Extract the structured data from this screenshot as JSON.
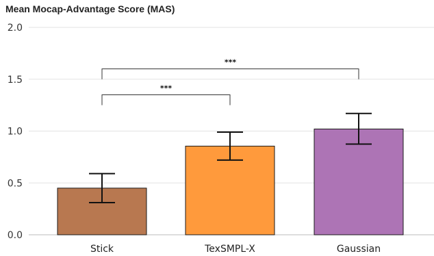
{
  "chart_data": {
    "type": "bar",
    "title": "Mean Mocap-Advantage Score (MAS)",
    "xlabel": "",
    "ylabel": "",
    "ylim": [
      0,
      2.0
    ],
    "yticks": [
      "0.0",
      "0.5",
      "1.0",
      "1.5",
      "2.0"
    ],
    "categories": [
      "Stick",
      "TexSMPL-X",
      "Gaussian"
    ],
    "values": [
      0.45,
      0.855,
      1.02
    ],
    "error_low": [
      0.31,
      0.72,
      0.875
    ],
    "error_high": [
      0.59,
      0.99,
      1.17
    ],
    "colors": [
      "#b87850",
      "#ff9a3c",
      "#ad74b5"
    ],
    "grid": true,
    "significance": [
      {
        "from": "Stick",
        "to": "TexSMPL-X",
        "label": "***",
        "y_base": 1.25,
        "y_top": 1.35
      },
      {
        "from": "Stick",
        "to": "Gaussian",
        "label": "***",
        "y_base": 1.5,
        "y_top": 1.6
      }
    ]
  }
}
